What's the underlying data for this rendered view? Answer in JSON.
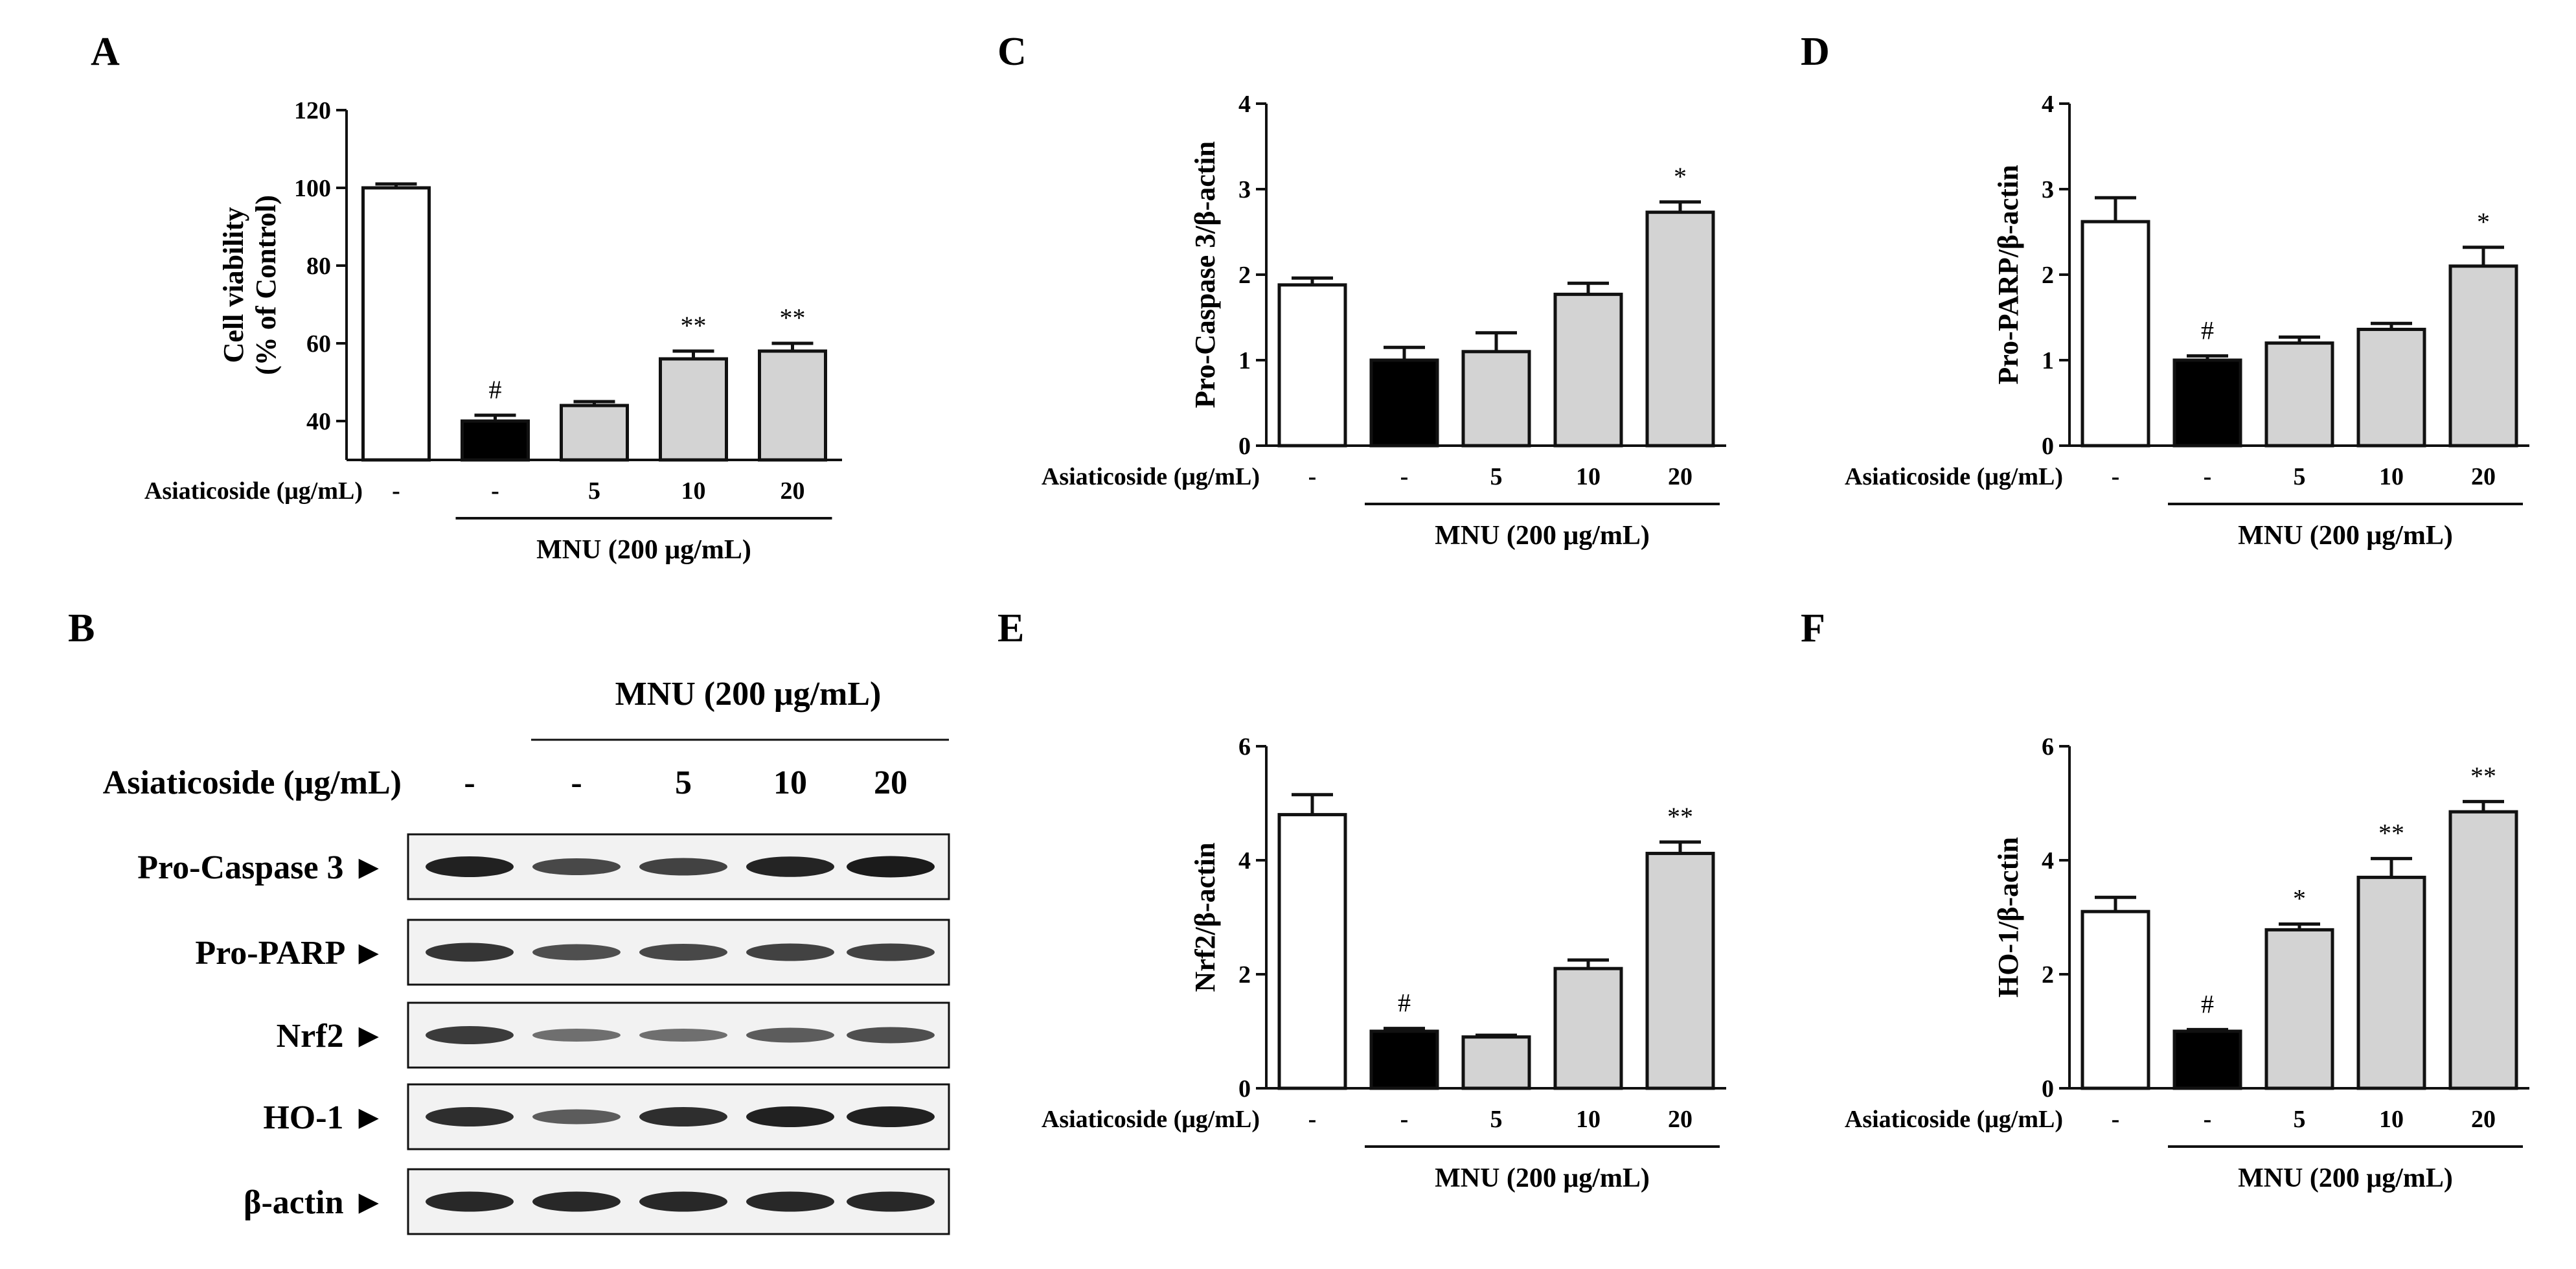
{
  "panel_letters": [
    "A",
    "B",
    "C",
    "D",
    "E",
    "F"
  ],
  "colors": {
    "control": "#ffffff",
    "mnu": "#000000",
    "treated": "#d3d3d3",
    "stroke": "#111111"
  },
  "chart_data": [
    {
      "id": "A",
      "type": "bar",
      "ylabel_line1": "Cell viability",
      "ylabel_line2": "(% of Control)",
      "ylim": [
        30,
        120
      ],
      "yticks": [
        40,
        60,
        80,
        100,
        120
      ],
      "asiaticoside_label": "Asiaticoside (μg/mL)",
      "mnu_label": "MNU (200 μg/mL)",
      "categories": [
        "-",
        "-",
        "5",
        "10",
        "20"
      ],
      "values": [
        100,
        40,
        44,
        56,
        58
      ],
      "errors": [
        1,
        1.5,
        1,
        2,
        2
      ],
      "annotations": [
        "",
        "#",
        "",
        "**",
        "**"
      ]
    },
    {
      "id": "C",
      "type": "bar",
      "ylabel": "Pro-Caspase 3/β-actin",
      "ylim": [
        0,
        4
      ],
      "yticks": [
        0,
        1,
        2,
        3,
        4
      ],
      "asiaticoside_label": "Asiaticoside (μg/mL)",
      "mnu_label": "MNU (200 μg/mL)",
      "categories": [
        "-",
        "-",
        "5",
        "10",
        "20"
      ],
      "values": [
        1.88,
        1.0,
        1.1,
        1.77,
        2.73
      ],
      "errors": [
        0.08,
        0.15,
        0.22,
        0.13,
        0.12
      ],
      "annotations": [
        "",
        "",
        "",
        "",
        "*"
      ]
    },
    {
      "id": "D",
      "type": "bar",
      "ylabel": "Pro-PARP/β-actin",
      "ylim": [
        0,
        4
      ],
      "yticks": [
        0,
        1,
        2,
        3,
        4
      ],
      "asiaticoside_label": "Asiaticoside (μg/mL)",
      "mnu_label": "MNU (200 μg/mL)",
      "categories": [
        "-",
        "-",
        "5",
        "10",
        "20"
      ],
      "values": [
        2.62,
        1.0,
        1.2,
        1.36,
        2.1
      ],
      "errors": [
        0.28,
        0.05,
        0.07,
        0.07,
        0.22
      ],
      "annotations": [
        "",
        "#",
        "",
        "",
        "*"
      ]
    },
    {
      "id": "E",
      "type": "bar",
      "ylabel": "Nrf2/β-actin",
      "ylim": [
        0,
        6
      ],
      "yticks": [
        0,
        2,
        4,
        6
      ],
      "asiaticoside_label": "Asiaticoside (μg/mL)",
      "mnu_label": "MNU (200 μg/mL)",
      "categories": [
        "-",
        "-",
        "5",
        "10",
        "20"
      ],
      "values": [
        4.8,
        1.0,
        0.9,
        2.1,
        4.12
      ],
      "errors": [
        0.35,
        0.05,
        0.03,
        0.15,
        0.2
      ],
      "annotations": [
        "",
        "#",
        "",
        "",
        "**"
      ]
    },
    {
      "id": "F",
      "type": "bar",
      "ylabel": "HO-1/β-actin",
      "ylim": [
        0,
        6
      ],
      "yticks": [
        0,
        2,
        4,
        6
      ],
      "asiaticoside_label": "Asiaticoside (μg/mL)",
      "mnu_label": "MNU (200 μg/mL)",
      "categories": [
        "-",
        "-",
        "5",
        "10",
        "20"
      ],
      "values": [
        3.1,
        1.0,
        2.78,
        3.7,
        4.85
      ],
      "errors": [
        0.25,
        0.03,
        0.1,
        0.33,
        0.18
      ],
      "annotations": [
        "",
        "#",
        "*",
        "**",
        "**"
      ]
    }
  ],
  "western_blot": {
    "mnu_label": "MNU (200 μg/mL)",
    "asiaticoside_label": "Asiaticoside (μg/mL)",
    "lanes": [
      "-",
      "-",
      "5",
      "10",
      "20"
    ],
    "proteins": [
      {
        "name": "Pro-Caspase 3 ►",
        "intensity": [
          0.9,
          0.6,
          0.65,
          0.88,
          0.95
        ]
      },
      {
        "name": "Pro-PARP ►",
        "intensity": [
          0.75,
          0.55,
          0.6,
          0.65,
          0.65
        ]
      },
      {
        "name": "Nrf2 ►",
        "intensity": [
          0.7,
          0.3,
          0.3,
          0.45,
          0.55
        ]
      },
      {
        "name": "HO-1 ►",
        "intensity": [
          0.8,
          0.45,
          0.8,
          0.9,
          0.9
        ]
      },
      {
        "name": "β-actin ►",
        "intensity": [
          0.85,
          0.85,
          0.85,
          0.85,
          0.85
        ]
      }
    ]
  }
}
